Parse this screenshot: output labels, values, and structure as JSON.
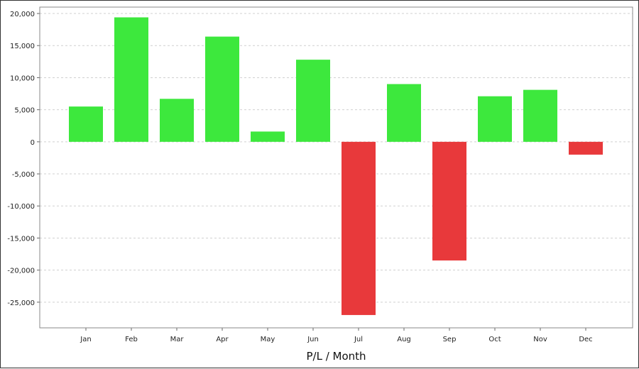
{
  "chart_data": {
    "type": "bar",
    "title": "",
    "xlabel": "P/L / Month",
    "ylabel": "",
    "categories": [
      "Jan",
      "Feb",
      "Mar",
      "Apr",
      "May",
      "Jun",
      "Jul",
      "Aug",
      "Sep",
      "Oct",
      "Nov",
      "Dec"
    ],
    "values": [
      5500,
      19400,
      6700,
      16400,
      1600,
      12800,
      -27000,
      9000,
      -18500,
      7100,
      8100,
      -2000
    ],
    "ylim": [
      -29000,
      21000
    ],
    "yticks": [
      20000,
      15000,
      10000,
      5000,
      0,
      -5000,
      -10000,
      -15000,
      -20000,
      -25000
    ],
    "ytick_labels": [
      "20,000",
      "15,000",
      "10,000",
      "5,000",
      "0",
      "-5,000",
      "-10,000",
      "-15,000",
      "-20,000",
      "-25,000"
    ],
    "grid": true,
    "colors": {
      "positive": "#3de83d",
      "negative": "#e8393b",
      "grid": "#d0d0d0",
      "plot_border": "#888888"
    }
  }
}
